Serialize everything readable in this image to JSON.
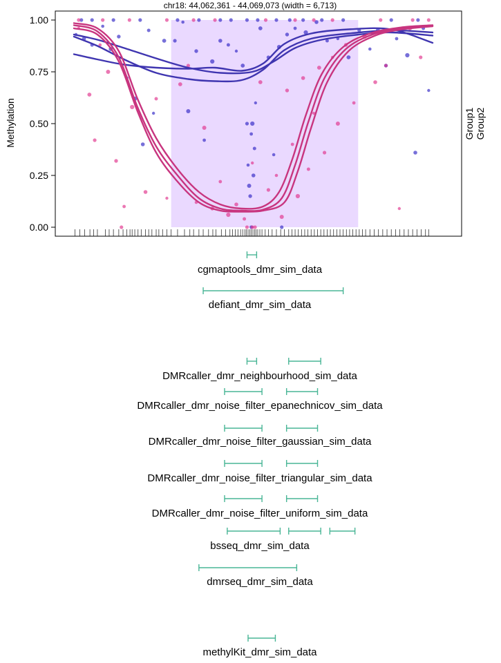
{
  "chart_data": {
    "type": "scatter",
    "title": "chr18: 44,062,361 - 44,069,073 (width = 6,713)",
    "ylabel": "Methylation",
    "xlabel": "",
    "xlim": [
      44062361,
      44069073
    ],
    "ylim": [
      0,
      1
    ],
    "yticks": [
      "0.00",
      "0.25",
      "0.50",
      "0.75",
      "1.00"
    ],
    "highlight_region": [
      44064180,
      44067680
    ],
    "legend": {
      "placement": "right",
      "entries": [
        "Group1",
        "Group2"
      ]
    },
    "colors": {
      "Group1": "#2e23c4",
      "Group2": "#e0308a",
      "highlight": "#ead9ff",
      "track": "#48b595"
    },
    "series": [
      {
        "name": "Group1",
        "smooth_curves": [
          [
            [
              44062361,
              0.93
            ],
            [
              44062800,
              0.905
            ],
            [
              44063300,
              0.865
            ],
            [
              44063900,
              0.815
            ],
            [
              44064500,
              0.77
            ],
            [
              44065100,
              0.745
            ],
            [
              44065700,
              0.75
            ],
            [
              44066100,
              0.8
            ],
            [
              44066500,
              0.865
            ],
            [
              44067000,
              0.905
            ],
            [
              44067700,
              0.93
            ],
            [
              44068300,
              0.94
            ],
            [
              44069073,
              0.925
            ]
          ],
          [
            [
              44062361,
              0.92
            ],
            [
              44062800,
              0.875
            ],
            [
              44063300,
              0.81
            ],
            [
              44063900,
              0.745
            ],
            [
              44064500,
              0.715
            ],
            [
              44065000,
              0.705
            ],
            [
              44065500,
              0.71
            ],
            [
              44065900,
              0.76
            ],
            [
              44066300,
              0.855
            ],
            [
              44066800,
              0.91
            ],
            [
              44067500,
              0.935
            ],
            [
              44068300,
              0.95
            ],
            [
              44069073,
              0.94
            ]
          ],
          [
            [
              44062361,
              0.835
            ],
            [
              44062800,
              0.81
            ],
            [
              44063300,
              0.785
            ],
            [
              44063900,
              0.77
            ],
            [
              44064500,
              0.765
            ],
            [
              44065000,
              0.77
            ],
            [
              44065500,
              0.755
            ],
            [
              44065900,
              0.79
            ],
            [
              44066300,
              0.885
            ],
            [
              44066800,
              0.935
            ],
            [
              44067500,
              0.955
            ],
            [
              44068300,
              0.955
            ],
            [
              44069073,
              0.89
            ]
          ]
        ],
        "points": [
          [
            44062400,
            0.93
          ],
          [
            44062550,
            0.91
          ],
          [
            44062700,
            0.88
          ],
          [
            44062900,
            0.97
          ],
          [
            44063050,
            0.86
          ],
          [
            44063200,
            0.92
          ],
          [
            44063350,
            0.72
          ],
          [
            44063500,
            0.62
          ],
          [
            44063650,
            0.4
          ],
          [
            44063760,
            0.95
          ],
          [
            44063850,
            0.55
          ],
          [
            44064050,
            0.9
          ],
          [
            44064250,
            0.9
          ],
          [
            44064400,
            0.99
          ],
          [
            44064500,
            0.56
          ],
          [
            44064650,
            0.85
          ],
          [
            44064800,
            0.42
          ],
          [
            44064950,
            0.8
          ],
          [
            44065100,
            0.9
          ],
          [
            44065250,
            0.88
          ],
          [
            44065400,
            0.85
          ],
          [
            44065520,
            0.78
          ],
          [
            44065600,
            0.5
          ],
          [
            44065620,
            0.3
          ],
          [
            44065640,
            0.2
          ],
          [
            44065660,
            0.15
          ],
          [
            44065680,
            0.45
          ],
          [
            44065700,
            0.5
          ],
          [
            44065720,
            0.25
          ],
          [
            44065740,
            0.38
          ],
          [
            44065760,
            0.6
          ],
          [
            44065850,
            0.96
          ],
          [
            44066000,
            0.82
          ],
          [
            44066100,
            0.35
          ],
          [
            44066200,
            0.87
          ],
          [
            44066350,
            0.93
          ],
          [
            44066500,
            0.96
          ],
          [
            44066700,
            0.94
          ],
          [
            44066900,
            0.99
          ],
          [
            44067100,
            0.9
          ],
          [
            44067300,
            0.91
          ],
          [
            44067500,
            0.82
          ],
          [
            44067700,
            0.95
          ],
          [
            44067900,
            0.86
          ],
          [
            44068050,
            0.95
          ],
          [
            44068200,
            0.78
          ],
          [
            44068400,
            0.91
          ],
          [
            44068600,
            0.83
          ],
          [
            44068750,
            0.36
          ],
          [
            44068900,
            0.96
          ],
          [
            44069000,
            0.66
          ],
          [
            44062500,
            1.0
          ],
          [
            44062700,
            1.0
          ],
          [
            44063100,
            1.0
          ],
          [
            44063600,
            1.0
          ],
          [
            44064300,
            1.0
          ],
          [
            44064700,
            1.0
          ],
          [
            44065100,
            1.0
          ],
          [
            44065300,
            1.0
          ],
          [
            44065600,
            1.0
          ],
          [
            44065800,
            1.0
          ],
          [
            44066150,
            1.0
          ],
          [
            44066400,
            1.0
          ],
          [
            44066650,
            1.0
          ],
          [
            44067000,
            1.0
          ],
          [
            44067400,
            1.0
          ],
          [
            44068300,
            1.0
          ],
          [
            44068800,
            1.0
          ],
          [
            44066250,
            0.0
          ],
          [
            44065680,
            0.0
          ]
        ]
      },
      {
        "name": "Group2",
        "smooth_curves": [
          [
            [
              44062361,
              0.985
            ],
            [
              44062800,
              0.96
            ],
            [
              44063200,
              0.85
            ],
            [
              44063550,
              0.62
            ],
            [
              44063900,
              0.43
            ],
            [
              44064300,
              0.28
            ],
            [
              44064700,
              0.17
            ],
            [
              44065100,
              0.11
            ],
            [
              44065500,
              0.09
            ],
            [
              44065900,
              0.1
            ],
            [
              44066200,
              0.17
            ],
            [
              44066450,
              0.33
            ],
            [
              44066700,
              0.54
            ],
            [
              44067000,
              0.74
            ],
            [
              44067400,
              0.87
            ],
            [
              44067900,
              0.935
            ],
            [
              44068500,
              0.965
            ],
            [
              44069073,
              0.975
            ]
          ],
          [
            [
              44062361,
              0.975
            ],
            [
              44062800,
              0.945
            ],
            [
              44063200,
              0.82
            ],
            [
              44063550,
              0.58
            ],
            [
              44063900,
              0.39
            ],
            [
              44064300,
              0.25
            ],
            [
              44064700,
              0.14
            ],
            [
              44065100,
              0.09
            ],
            [
              44065500,
              0.08
            ],
            [
              44065900,
              0.085
            ],
            [
              44066250,
              0.14
            ],
            [
              44066500,
              0.3
            ],
            [
              44066750,
              0.51
            ],
            [
              44067050,
              0.72
            ],
            [
              44067450,
              0.86
            ],
            [
              44067950,
              0.93
            ],
            [
              44068500,
              0.96
            ],
            [
              44069073,
              0.972
            ]
          ],
          [
            [
              44062361,
              0.96
            ],
            [
              44062800,
              0.93
            ],
            [
              44063200,
              0.8
            ],
            [
              44063550,
              0.56
            ],
            [
              44063900,
              0.36
            ],
            [
              44064300,
              0.22
            ],
            [
              44064700,
              0.12
            ],
            [
              44065100,
              0.08
            ],
            [
              44065500,
              0.075
            ],
            [
              44065900,
              0.08
            ],
            [
              44066300,
              0.12
            ],
            [
              44066550,
              0.27
            ],
            [
              44066800,
              0.48
            ],
            [
              44067100,
              0.7
            ],
            [
              44067500,
              0.85
            ],
            [
              44068000,
              0.925
            ],
            [
              44068500,
              0.955
            ],
            [
              44069073,
              0.97
            ]
          ]
        ],
        "points": [
          [
            44062450,
            0.96
          ],
          [
            44062650,
            0.64
          ],
          [
            44062750,
            0.42
          ],
          [
            44062850,
            0.88
          ],
          [
            44063000,
            0.75
          ],
          [
            44063150,
            0.32
          ],
          [
            44063300,
            0.1
          ],
          [
            44063450,
            0.58
          ],
          [
            44063700,
            0.17
          ],
          [
            44063900,
            0.62
          ],
          [
            44064100,
            0.14
          ],
          [
            44064350,
            0.69
          ],
          [
            44064500,
            0.78
          ],
          [
            44064650,
            0.12
          ],
          [
            44064800,
            0.48
          ],
          [
            44064950,
            0.09
          ],
          [
            44065100,
            0.22
          ],
          [
            44065250,
            0.06
          ],
          [
            44065400,
            0.11
          ],
          [
            44065550,
            0.04
          ],
          [
            44065700,
            0.31
          ],
          [
            44065850,
            0.7
          ],
          [
            44066000,
            0.18
          ],
          [
            44066150,
            0.25
          ],
          [
            44066250,
            0.05
          ],
          [
            44066350,
            0.66
          ],
          [
            44066450,
            0.4
          ],
          [
            44066550,
            0.15
          ],
          [
            44066650,
            0.72
          ],
          [
            44066750,
            0.28
          ],
          [
            44066850,
            0.55
          ],
          [
            44066950,
            0.77
          ],
          [
            44067050,
            0.36
          ],
          [
            44067200,
            0.82
          ],
          [
            44067300,
            0.5
          ],
          [
            44067450,
            0.88
          ],
          [
            44067600,
            0.6
          ],
          [
            44067800,
            0.92
          ],
          [
            44068000,
            0.7
          ],
          [
            44068200,
            0.78
          ],
          [
            44068450,
            0.09
          ],
          [
            44068650,
            0.96
          ],
          [
            44068850,
            0.82
          ],
          [
            44063250,
            0.0
          ],
          [
            44065600,
            0.0
          ],
          [
            44065700,
            0.0
          ],
          [
            44065750,
            0.0
          ],
          [
            44062450,
            1.0
          ],
          [
            44062900,
            1.0
          ],
          [
            44063400,
            1.0
          ],
          [
            44064100,
            1.0
          ],
          [
            44064600,
            1.0
          ],
          [
            44065000,
            1.0
          ],
          [
            44065950,
            1.0
          ],
          [
            44066500,
            1.0
          ],
          [
            44066850,
            1.0
          ],
          [
            44067200,
            1.0
          ],
          [
            44068100,
            1.0
          ],
          [
            44068700,
            1.0
          ],
          [
            44069000,
            1.0
          ]
        ]
      }
    ],
    "cpg_sites": [
      44062380,
      44062470,
      44062560,
      44062660,
      44062730,
      44062800,
      44062950,
      44063020,
      44063100,
      44063200,
      44063280,
      44063350,
      44063410,
      44063450,
      44063500,
      44063560,
      44063620,
      44063700,
      44063760,
      44063820,
      44063900,
      44063950,
      44064020,
      44064100,
      44064180,
      44064300,
      44064430,
      44064530,
      44064600,
      44064700,
      44064780,
      44064880,
      44064960,
      44065020,
      44065120,
      44065200,
      44065280,
      44065330,
      44065380,
      44065430,
      44065480,
      44065520,
      44065560,
      44065590,
      44065620,
      44065650,
      44065680,
      44065710,
      44065740,
      44065770,
      44065800,
      44065840,
      44065880,
      44065940,
      44066000,
      44066070,
      44066150,
      44066230,
      44066300,
      44066380,
      44066440,
      44066500,
      44066560,
      44066620,
      44066680,
      44066740,
      44066800,
      44066860,
      44066920,
      44066980,
      44067040,
      44067100,
      44067160,
      44067220,
      44067280,
      44067340,
      44067400,
      44067460,
      44067520,
      44067580,
      44067640,
      44067700,
      44067760,
      44067820,
      44067900,
      44067980,
      44068060,
      44068140,
      44068220,
      44068300,
      44068380,
      44068460,
      44068540,
      44068620,
      44068700,
      44068780,
      44068860,
      44068940,
      44069000
    ]
  },
  "tracks": [
    {
      "label": "cgmaptools_dmr_sim_data",
      "intervals": [
        [
          44065600,
          44065780
        ]
      ]
    },
    {
      "label": "defiant_dmr_sim_data",
      "intervals": [
        [
          44064780,
          44067400
        ]
      ]
    },
    {
      "label": "DMRcaller_dmr_neighbourhood_sim_data",
      "intervals": [
        [
          44065600,
          44065780
        ],
        [
          44066380,
          44066980
        ]
      ]
    },
    {
      "label": "DMRcaller_dmr_noise_filter_epanechnicov_sim_data",
      "intervals": [
        [
          44065180,
          44065880
        ],
        [
          44066340,
          44066920
        ]
      ]
    },
    {
      "label": "DMRcaller_dmr_noise_filter_gaussian_sim_data",
      "intervals": [
        [
          44065180,
          44065880
        ],
        [
          44066340,
          44066920
        ]
      ]
    },
    {
      "label": "DMRcaller_dmr_noise_filter_triangular_sim_data",
      "intervals": [
        [
          44065180,
          44065880
        ],
        [
          44066340,
          44066920
        ]
      ]
    },
    {
      "label": "DMRcaller_dmr_noise_filter_uniform_sim_data",
      "intervals": [
        [
          44065180,
          44065880
        ],
        [
          44066340,
          44066920
        ]
      ]
    },
    {
      "label": "bsseq_dmr_sim_data",
      "intervals": [
        [
          44065230,
          44066220
        ],
        [
          44066380,
          44066980
        ],
        [
          44067150,
          44067620
        ]
      ]
    },
    {
      "label": "dmrseq_dmr_sim_data",
      "intervals": [
        [
          44064700,
          44066530
        ]
      ]
    },
    {
      "label": "methylKit_dmr_sim_data",
      "intervals": [
        [
          44065620,
          44066130
        ]
      ]
    }
  ]
}
